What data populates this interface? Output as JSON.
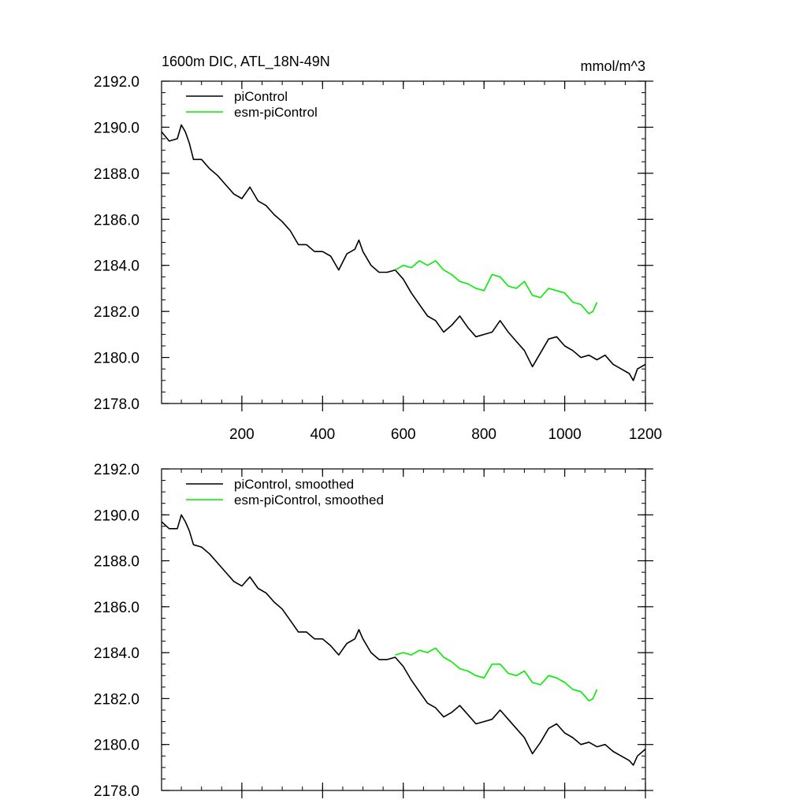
{
  "chart_data": [
    {
      "type": "line",
      "title": "1600m DIC, ATL_18N-49N",
      "units": "mmol/m^3",
      "xlabel": "",
      "ylabel": "",
      "xlim": [
        1,
        1200
      ],
      "ylim": [
        2178.0,
        2192.0
      ],
      "x_ticks": [
        "200",
        "400",
        "600",
        "800",
        "1000",
        "1200"
      ],
      "y_ticks": [
        "2178.0",
        "2180.0",
        "2182.0",
        "2184.0",
        "2186.0",
        "2188.0",
        "2190.0",
        "2192.0"
      ],
      "show_x_tick_labels": true,
      "legend_position": "top-left",
      "series": [
        {
          "name": "piControl",
          "color": "#000000",
          "x": [
            1,
            20,
            40,
            50,
            60,
            70,
            80,
            100,
            120,
            140,
            160,
            180,
            200,
            220,
            240,
            260,
            280,
            300,
            320,
            340,
            360,
            380,
            400,
            420,
            440,
            460,
            480,
            490,
            500,
            520,
            540,
            560,
            580,
            600,
            620,
            640,
            660,
            680,
            700,
            720,
            740,
            760,
            780,
            800,
            820,
            840,
            860,
            880,
            900,
            920,
            940,
            960,
            980,
            1000,
            1020,
            1040,
            1060,
            1080,
            1100,
            1120,
            1140,
            1160,
            1170,
            1180,
            1200
          ],
          "y": [
            2189.8,
            2189.4,
            2189.5,
            2190.1,
            2189.8,
            2189.3,
            2188.6,
            2188.6,
            2188.2,
            2187.9,
            2187.5,
            2187.1,
            2186.9,
            2187.4,
            2186.8,
            2186.6,
            2186.2,
            2185.9,
            2185.5,
            2184.9,
            2184.9,
            2184.6,
            2184.6,
            2184.4,
            2183.8,
            2184.5,
            2184.7,
            2185.1,
            2184.6,
            2184.0,
            2183.7,
            2183.7,
            2183.8,
            2183.4,
            2182.8,
            2182.3,
            2181.8,
            2181.6,
            2181.1,
            2181.4,
            2181.8,
            2181.3,
            2180.9,
            2181.0,
            2181.1,
            2181.6,
            2181.1,
            2180.7,
            2180.3,
            2179.6,
            2180.2,
            2180.8,
            2180.9,
            2180.5,
            2180.3,
            2180.0,
            2180.1,
            2179.9,
            2180.1,
            2179.7,
            2179.5,
            2179.3,
            2179.0,
            2179.5,
            2179.7
          ]
        },
        {
          "name": "esm-piControl",
          "color": "#00ee00",
          "x": [
            580,
            600,
            620,
            640,
            660,
            680,
            700,
            720,
            740,
            760,
            780,
            800,
            820,
            840,
            860,
            880,
            900,
            920,
            940,
            960,
            980,
            1000,
            1020,
            1040,
            1060,
            1070,
            1080
          ],
          "y": [
            2183.8,
            2184.0,
            2183.9,
            2184.2,
            2184.0,
            2184.2,
            2183.8,
            2183.6,
            2183.3,
            2183.2,
            2183.0,
            2182.9,
            2183.6,
            2183.5,
            2183.1,
            2183.0,
            2183.3,
            2182.7,
            2182.6,
            2183.0,
            2182.9,
            2182.8,
            2182.4,
            2182.3,
            2181.9,
            2182.0,
            2182.4
          ]
        }
      ]
    },
    {
      "type": "line",
      "title": "",
      "xlabel": "",
      "ylabel": "",
      "xlim": [
        1,
        1200
      ],
      "ylim": [
        2178.0,
        2192.0
      ],
      "x_ticks": [
        "200",
        "400",
        "600",
        "800",
        "1000",
        "1200"
      ],
      "y_ticks": [
        "2178.0",
        "2180.0",
        "2182.0",
        "2184.0",
        "2186.0",
        "2188.0",
        "2190.0",
        "2192.0"
      ],
      "show_x_tick_labels": false,
      "legend_position": "top-left",
      "series": [
        {
          "name": "piControl, smoothed",
          "color": "#000000",
          "x": [
            1,
            20,
            40,
            50,
            60,
            70,
            80,
            100,
            120,
            140,
            160,
            180,
            200,
            220,
            240,
            260,
            280,
            300,
            320,
            340,
            360,
            380,
            400,
            420,
            440,
            460,
            480,
            490,
            500,
            520,
            540,
            560,
            580,
            600,
            620,
            640,
            660,
            680,
            700,
            720,
            740,
            760,
            780,
            800,
            820,
            840,
            860,
            880,
            900,
            920,
            940,
            960,
            980,
            1000,
            1020,
            1040,
            1060,
            1080,
            1100,
            1120,
            1140,
            1160,
            1170,
            1180,
            1200
          ],
          "y": [
            2189.7,
            2189.4,
            2189.4,
            2190.0,
            2189.7,
            2189.3,
            2188.7,
            2188.6,
            2188.3,
            2187.9,
            2187.5,
            2187.1,
            2186.9,
            2187.3,
            2186.8,
            2186.6,
            2186.2,
            2185.9,
            2185.4,
            2184.9,
            2184.9,
            2184.6,
            2184.6,
            2184.3,
            2183.9,
            2184.4,
            2184.6,
            2185.0,
            2184.6,
            2184.0,
            2183.7,
            2183.7,
            2183.8,
            2183.4,
            2182.8,
            2182.3,
            2181.8,
            2181.6,
            2181.2,
            2181.4,
            2181.7,
            2181.3,
            2180.9,
            2181.0,
            2181.1,
            2181.5,
            2181.1,
            2180.7,
            2180.3,
            2179.6,
            2180.1,
            2180.7,
            2180.9,
            2180.5,
            2180.3,
            2180.0,
            2180.1,
            2179.9,
            2180.0,
            2179.7,
            2179.5,
            2179.3,
            2179.1,
            2179.5,
            2179.8
          ]
        },
        {
          "name": "esm-piControl, smoothed",
          "color": "#00ee00",
          "x": [
            580,
            600,
            620,
            640,
            660,
            680,
            700,
            720,
            740,
            760,
            780,
            800,
            820,
            840,
            860,
            880,
            900,
            920,
            940,
            960,
            980,
            1000,
            1020,
            1040,
            1060,
            1070,
            1080
          ],
          "y": [
            2183.9,
            2184.0,
            2183.9,
            2184.1,
            2184.0,
            2184.2,
            2183.8,
            2183.6,
            2183.3,
            2183.2,
            2183.0,
            2182.9,
            2183.5,
            2183.5,
            2183.1,
            2183.0,
            2183.2,
            2182.7,
            2182.6,
            2183.0,
            2182.9,
            2182.7,
            2182.4,
            2182.3,
            2181.9,
            2182.0,
            2182.4
          ]
        }
      ]
    }
  ]
}
